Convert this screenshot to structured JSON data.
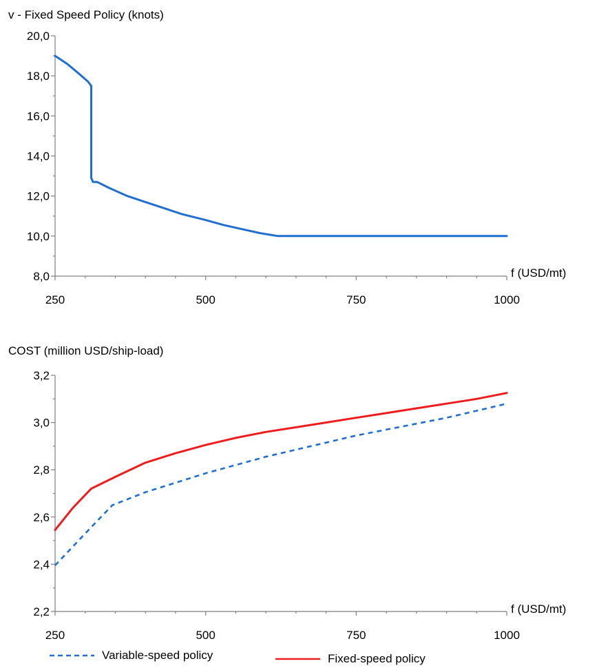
{
  "chart_data": [
    {
      "type": "line",
      "title": "v - Fixed Speed Policy (knots)",
      "xlabel": "f (USD/mt)",
      "ylabel": "",
      "xlim": [
        250,
        1000
      ],
      "ylim": [
        8,
        20
      ],
      "xticks": [
        250,
        500,
        750,
        1000
      ],
      "xtick_labels": [
        "250",
        "500",
        "750",
        "1000"
      ],
      "yticks": [
        8,
        10,
        12,
        14,
        16,
        18,
        20
      ],
      "ytick_labels": [
        "8,0",
        "10,0",
        "12,0",
        "14,0",
        "16,0",
        "18,0",
        "20,0"
      ],
      "grid": false,
      "series": [
        {
          "color": "#1f6fd1",
          "dash": "solid",
          "x": [
            250,
            270,
            290,
            305,
            310,
            310,
            313,
            320,
            340,
            370,
            400,
            430,
            460,
            500,
            530,
            560,
            590,
            610,
            620,
            700,
            800,
            900,
            1000
          ],
          "y": [
            19.0,
            18.6,
            18.1,
            17.7,
            17.5,
            12.9,
            12.7,
            12.7,
            12.4,
            12.0,
            11.7,
            11.4,
            11.1,
            10.8,
            10.55,
            10.35,
            10.15,
            10.05,
            10.0,
            10.0,
            10.0,
            10.0,
            10.0
          ]
        }
      ]
    },
    {
      "type": "line",
      "title": "COST (million USD/ship-load)",
      "xlabel": "f (USD/mt)",
      "ylabel": "",
      "xlim": [
        250,
        1000
      ],
      "ylim": [
        2.2,
        3.2
      ],
      "xticks": [
        250,
        500,
        750,
        1000
      ],
      "xtick_labels": [
        "250",
        "500",
        "750",
        "1000"
      ],
      "yticks": [
        2.2,
        2.4,
        2.6,
        2.8,
        3.0,
        3.2
      ],
      "ytick_labels": [
        "2,2",
        "2,4",
        "2,6",
        "2,8",
        "3,0",
        "3,2"
      ],
      "grid": false,
      "legend": "bottom",
      "series": [
        {
          "name": "Variable-speed policy",
          "color": "#1f6fd1",
          "dash": "dashed",
          "x": [
            250,
            300,
            345,
            400,
            450,
            500,
            550,
            600,
            650,
            700,
            750,
            800,
            850,
            900,
            950,
            1000
          ],
          "y": [
            2.395,
            2.53,
            2.65,
            2.705,
            2.745,
            2.785,
            2.82,
            2.855,
            2.885,
            2.915,
            2.945,
            2.97,
            2.995,
            3.02,
            3.05,
            3.08
          ]
        },
        {
          "name": "Fixed-speed policy",
          "color": "#ee1c1c",
          "dash": "solid",
          "x": [
            250,
            280,
            310,
            350,
            400,
            450,
            500,
            550,
            600,
            650,
            700,
            750,
            800,
            850,
            900,
            950,
            1000
          ],
          "y": [
            2.545,
            2.64,
            2.72,
            2.77,
            2.83,
            2.87,
            2.905,
            2.935,
            2.96,
            2.98,
            3.0,
            3.02,
            3.04,
            3.06,
            3.08,
            3.1,
            3.125
          ]
        }
      ]
    }
  ]
}
